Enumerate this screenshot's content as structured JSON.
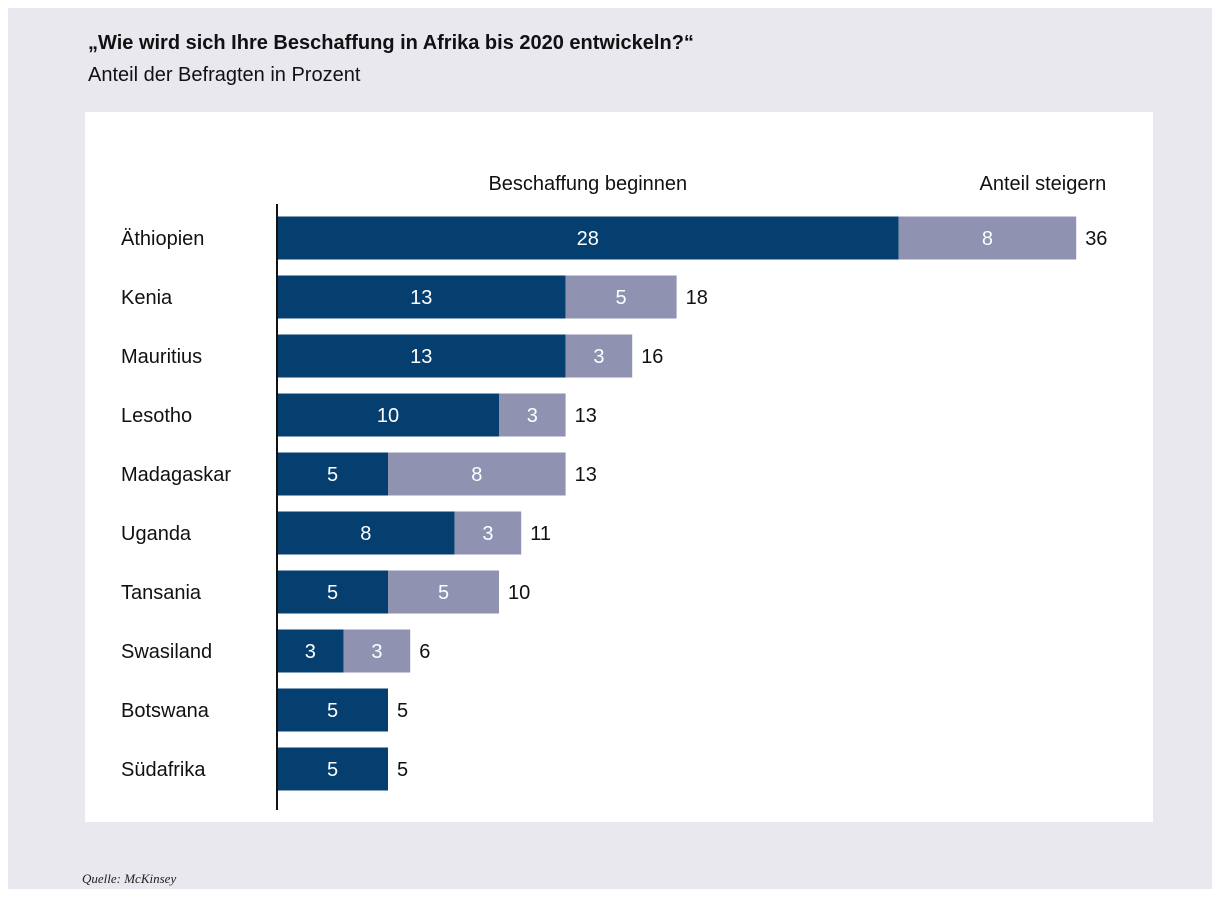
{
  "chart_title": "„Wie wird sich Ihre Beschaffung in Afrika bis 2020 entwickeln?“",
  "chart_subtitle": "Anteil der Befragten in Prozent",
  "source": "Quelle: McKinsey",
  "colors": {
    "background": "#e8e8ee",
    "panel": "#ffffff",
    "beginnen": "#053f6f",
    "steigern": "#8f93b1",
    "axis": "#111111"
  },
  "chart_data": {
    "type": "bar",
    "orientation": "horizontal",
    "stacked": true,
    "categories": [
      "Äthiopien",
      "Kenia",
      "Mauritius",
      "Lesotho",
      "Madagaskar",
      "Uganda",
      "Tansania",
      "Swasiland",
      "Botswana",
      "Südafrika"
    ],
    "series": [
      {
        "name": "Beschaffung beginnen",
        "values": [
          28,
          13,
          13,
          10,
          5,
          8,
          5,
          3,
          5,
          5
        ],
        "color": "#053f6f"
      },
      {
        "name": "Anteil steigern",
        "values": [
          8,
          5,
          3,
          3,
          8,
          3,
          5,
          3,
          0,
          0
        ],
        "color": "#8f93b1"
      }
    ],
    "totals": [
      36,
      18,
      16,
      13,
      13,
      11,
      10,
      6,
      5,
      5
    ],
    "data_labels": true,
    "grid": false,
    "legend_placement": "top"
  }
}
